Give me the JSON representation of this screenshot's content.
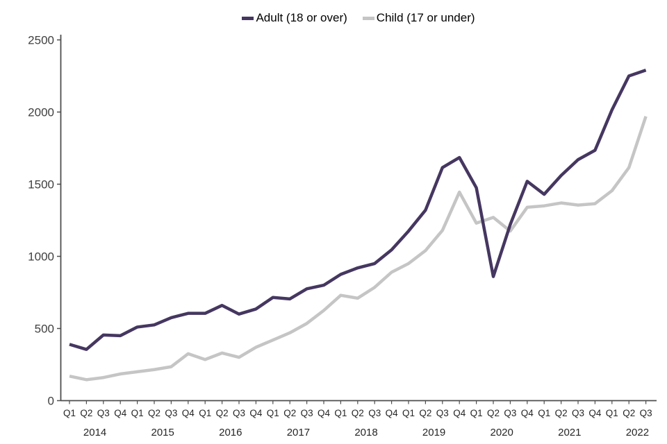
{
  "chart_data": {
    "type": "line",
    "title": "",
    "xlabel": "",
    "ylabel": "",
    "ylim": [
      0,
      2500
    ],
    "yticks": [
      0,
      500,
      1000,
      1500,
      2000,
      2500
    ],
    "grid": false,
    "legend_position": "top-center",
    "x": {
      "quarters": [
        "Q1",
        "Q2",
        "Q3",
        "Q4",
        "Q1",
        "Q2",
        "Q3",
        "Q4",
        "Q1",
        "Q2",
        "Q3",
        "Q4",
        "Q1",
        "Q2",
        "Q3",
        "Q4",
        "Q1",
        "Q2",
        "Q3",
        "Q4",
        "Q1",
        "Q2",
        "Q3",
        "Q4",
        "Q1",
        "Q2",
        "Q3",
        "Q4",
        "Q1",
        "Q2",
        "Q3",
        "Q4",
        "Q1",
        "Q2",
        "Q3"
      ],
      "years": [
        "2014",
        "2015",
        "2016",
        "2017",
        "2018",
        "2019",
        "2020",
        "2021",
        "2022"
      ],
      "quarters_per_year": [
        4,
        4,
        4,
        4,
        4,
        4,
        4,
        4,
        3
      ]
    },
    "series": [
      {
        "name": "Adult (18 or over)",
        "color": "#453760",
        "values": [
          390,
          355,
          455,
          450,
          510,
          525,
          575,
          605,
          605,
          660,
          600,
          635,
          715,
          705,
          775,
          800,
          875,
          920,
          950,
          1045,
          1175,
          1320,
          1615,
          1685,
          1475,
          860,
          1220,
          1520,
          1430,
          1560,
          1670,
          1735,
          2015,
          2250,
          2290
        ]
      },
      {
        "name": "Child (17 or under)",
        "color": "#c5c5c5",
        "values": [
          170,
          145,
          160,
          185,
          200,
          215,
          235,
          325,
          285,
          330,
          300,
          370,
          420,
          470,
          535,
          625,
          730,
          710,
          785,
          890,
          950,
          1040,
          1180,
          1445,
          1230,
          1270,
          1175,
          1340,
          1350,
          1370,
          1355,
          1365,
          1455,
          1615,
          1970
        ]
      }
    ],
    "axis_color": "#4d4d4d",
    "y_label_color": "#404040",
    "x_label_color": "#262626"
  }
}
